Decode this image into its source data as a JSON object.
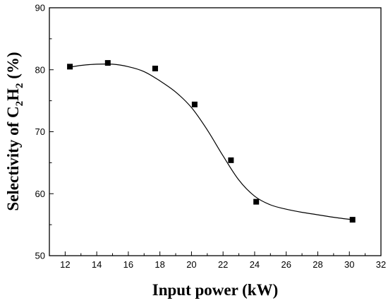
{
  "chart_data": {
    "type": "scatter",
    "xlabel": "Input power (kW)",
    "ylabel": "Selectivity of C2H2 (%)",
    "ylabel_parts": {
      "prefix": "Selectivity of C",
      "sub1": "2",
      "mid": "H",
      "sub2": "2",
      "suffix": " (%)"
    },
    "xlim": [
      11,
      32
    ],
    "ylim": [
      50,
      90
    ],
    "xticks": [
      12,
      14,
      16,
      18,
      20,
      22,
      24,
      26,
      28,
      30,
      32
    ],
    "yticks": [
      50,
      60,
      70,
      80,
      90
    ],
    "grid": false,
    "marker": "square",
    "series": [
      {
        "x": [
          12.3,
          14.7,
          17.7,
          20.2,
          22.5,
          24.1,
          30.2
        ],
        "y": [
          80.5,
          81.1,
          80.2,
          74.4,
          65.4,
          58.7,
          55.8
        ]
      }
    ],
    "fit_curve": {
      "x": [
        12.3,
        13,
        14,
        15,
        16,
        17,
        18,
        19,
        20,
        21,
        22,
        23,
        24,
        25,
        26,
        27,
        28,
        29,
        30.2
      ],
      "y": [
        80.4,
        80.7,
        80.9,
        80.9,
        80.5,
        79.7,
        78.2,
        76.4,
        73.9,
        70.3,
        66.1,
        62.2,
        59.6,
        58.2,
        57.5,
        57.0,
        56.6,
        56.2,
        55.8
      ]
    }
  }
}
